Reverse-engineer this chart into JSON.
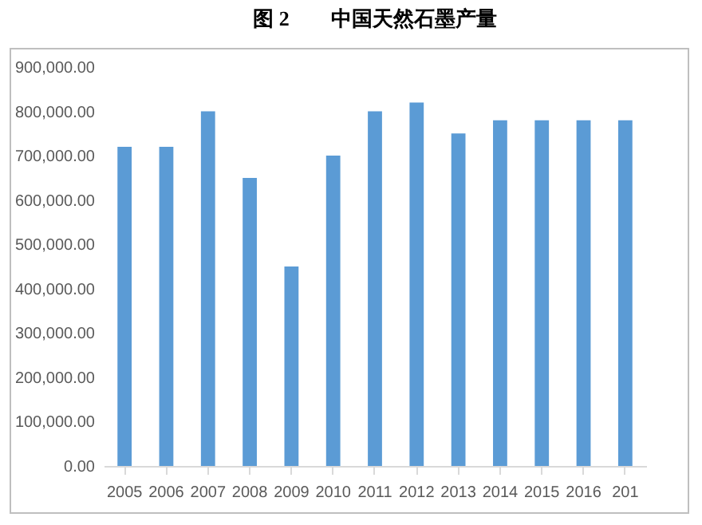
{
  "chart_data": {
    "type": "bar",
    "title": "图 2　　中国天然石墨产量",
    "categories": [
      "2005",
      "2006",
      "2007",
      "2008",
      "2009",
      "2010",
      "2011",
      "2012",
      "2013",
      "2014",
      "2015",
      "2016",
      "201"
    ],
    "values": [
      720000,
      720000,
      800000,
      650000,
      450000,
      700000,
      800000,
      820000,
      750000,
      780000,
      780000,
      780000,
      780000
    ],
    "color": "#5b9bd5",
    "ylim": [
      0,
      900000
    ],
    "yticks": [
      {
        "value": 0,
        "label": "0.00"
      },
      {
        "value": 100000,
        "label": "100,000.00"
      },
      {
        "value": 200000,
        "label": "200,000.00"
      },
      {
        "value": 300000,
        "label": "300,000.00"
      },
      {
        "value": 400000,
        "label": "400,000.00"
      },
      {
        "value": 500000,
        "label": "500,000.00"
      },
      {
        "value": 600000,
        "label": "600,000.00"
      },
      {
        "value": 700000,
        "label": "700,000.00"
      },
      {
        "value": 800000,
        "label": "800,000.00"
      },
      {
        "value": 900000,
        "label": "900,000.00"
      }
    ],
    "grid": false
  }
}
